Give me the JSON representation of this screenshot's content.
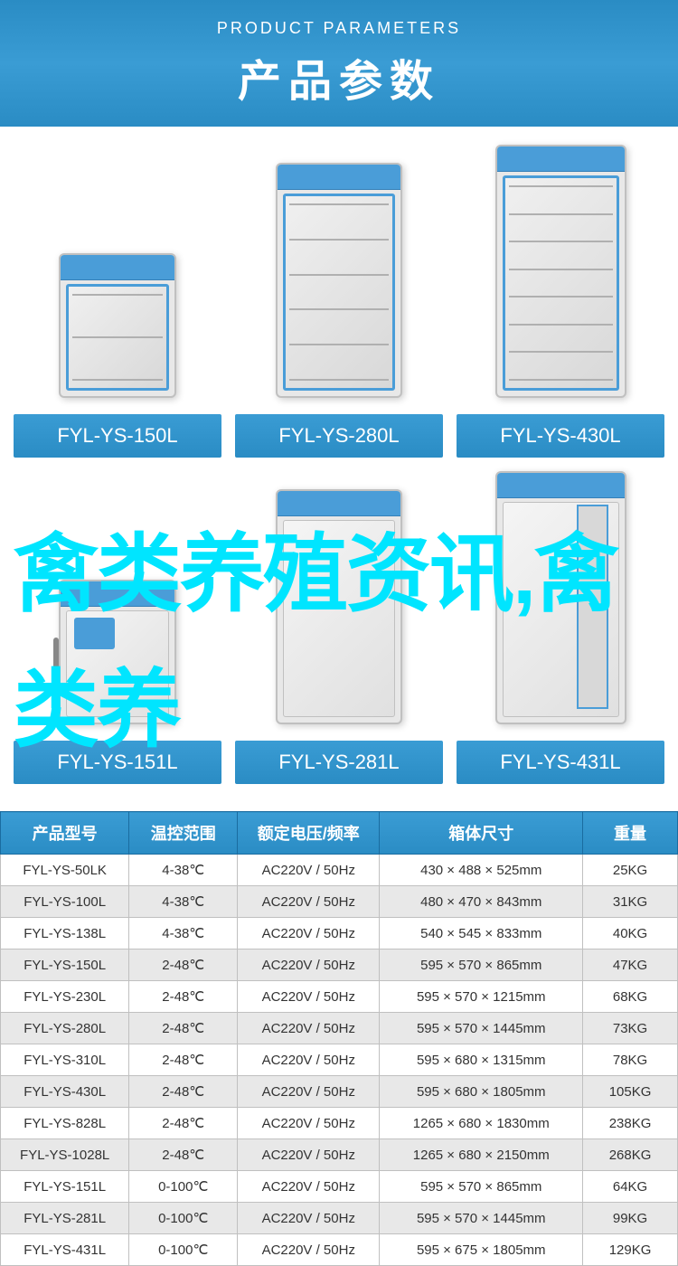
{
  "header": {
    "subtitle": "PRODUCT PARAMETERS",
    "title": "产品参数",
    "background_color": "#2a8cc4",
    "text_color": "#ffffff"
  },
  "products": {
    "items": [
      {
        "label": "FYL-YS-150L",
        "size": "small",
        "door_type": "glass",
        "shelf_count": 3
      },
      {
        "label": "FYL-YS-280L",
        "size": "medium",
        "door_type": "glass",
        "shelf_count": 6
      },
      {
        "label": "FYL-YS-430L",
        "size": "large",
        "door_type": "glass",
        "shelf_count": 8
      },
      {
        "label": "FYL-YS-151L",
        "size": "small",
        "door_type": "solid",
        "shelf_count": 0
      },
      {
        "label": "FYL-YS-281L",
        "size": "medium",
        "door_type": "solid",
        "shelf_count": 0
      },
      {
        "label": "FYL-YS-431L",
        "size": "large",
        "door_type": "narrow_glass",
        "shelf_count": 0
      }
    ],
    "label_bg_color": "#2a8cc4",
    "label_text_color": "#ffffff",
    "accent_color": "#4a9dd8"
  },
  "spec_table": {
    "columns": [
      "产品型号",
      "温控范围",
      "额定电压/频率",
      "箱体尺寸",
      "重量"
    ],
    "column_widths": [
      "19%",
      "16%",
      "21%",
      "30%",
      "14%"
    ],
    "header_bg": "#2a8cc4",
    "header_text_color": "#ffffff",
    "row_bg_even": "#e8e8e8",
    "row_bg_odd": "#ffffff",
    "border_color": "#c0c0c0",
    "rows": [
      [
        "FYL-YS-50LK",
        "4-38℃",
        "AC220V / 50Hz",
        "430 × 488 × 525mm",
        "25KG"
      ],
      [
        "FYL-YS-100L",
        "4-38℃",
        "AC220V / 50Hz",
        "480 × 470 × 843mm",
        "31KG"
      ],
      [
        "FYL-YS-138L",
        "4-38℃",
        "AC220V / 50Hz",
        "540 × 545 × 833mm",
        "40KG"
      ],
      [
        "FYL-YS-150L",
        "2-48℃",
        "AC220V / 50Hz",
        "595 × 570 × 865mm",
        "47KG"
      ],
      [
        "FYL-YS-230L",
        "2-48℃",
        "AC220V / 50Hz",
        "595 × 570 × 1215mm",
        "68KG"
      ],
      [
        "FYL-YS-280L",
        "2-48℃",
        "AC220V / 50Hz",
        "595 × 570 × 1445mm",
        "73KG"
      ],
      [
        "FYL-YS-310L",
        "2-48℃",
        "AC220V / 50Hz",
        "595 × 680 × 1315mm",
        "78KG"
      ],
      [
        "FYL-YS-430L",
        "2-48℃",
        "AC220V / 50Hz",
        "595 × 680 × 1805mm",
        "105KG"
      ],
      [
        "FYL-YS-828L",
        "2-48℃",
        "AC220V / 50Hz",
        "1265 × 680 × 1830mm",
        "238KG"
      ],
      [
        "FYL-YS-1028L",
        "2-48℃",
        "AC220V / 50Hz",
        "1265 × 680 × 2150mm",
        "268KG"
      ],
      [
        "FYL-YS-151L",
        "0-100℃",
        "AC220V / 50Hz",
        "595 × 570 × 865mm",
        "64KG"
      ],
      [
        "FYL-YS-281L",
        "0-100℃",
        "AC220V / 50Hz",
        "595 × 570 × 1445mm",
        "99KG"
      ],
      [
        "FYL-YS-431L",
        "0-100℃",
        "AC220V / 50Hz",
        "595 × 675 × 1805mm",
        "129KG"
      ]
    ]
  },
  "watermark": {
    "text": "禽类养殖资讯,禽类养",
    "color": "#00e5ff",
    "fontsize": 94
  }
}
